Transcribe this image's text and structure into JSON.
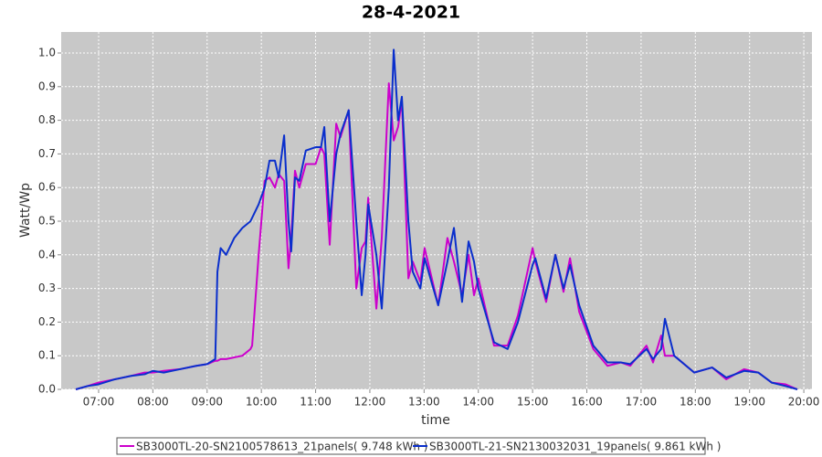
{
  "chart_data": {
    "type": "line",
    "title": "28-4-2021",
    "x_label": "time",
    "y_label": "Watt/Wp",
    "x": [
      6.58,
      6.8,
      7.0,
      7.3,
      7.6,
      7.85,
      8.0,
      8.2,
      8.5,
      8.8,
      9.0,
      9.15,
      9.19,
      9.25,
      9.35,
      9.5,
      9.65,
      9.8,
      9.83,
      9.95,
      10.06,
      10.15,
      10.25,
      10.32,
      10.42,
      10.5,
      10.55,
      10.62,
      10.7,
      10.82,
      11.0,
      11.1,
      11.16,
      11.26,
      11.38,
      11.46,
      11.61,
      11.75,
      11.85,
      11.92,
      11.97,
      12.12,
      12.22,
      12.35,
      12.44,
      12.52,
      12.59,
      12.71,
      12.79,
      12.93,
      13.01,
      13.26,
      13.43,
      13.55,
      13.7,
      13.82,
      13.92,
      14.0,
      14.29,
      14.54,
      14.73,
      15.0,
      15.05,
      15.25,
      15.42,
      15.57,
      15.69,
      15.86,
      16.12,
      16.38,
      16.63,
      16.8,
      17.1,
      17.22,
      17.37,
      17.44,
      17.61,
      17.98,
      18.31,
      18.57,
      18.9,
      19.16,
      19.41,
      19.66,
      19.88
    ],
    "series": [
      {
        "name": "SB3000TL-20-SN2100578613_21panels( 9.748 kWh )",
        "color": "#cc00cc",
        "values": [
          0,
          0.01,
          0.02,
          0.03,
          0.04,
          0.05,
          0.05,
          0.055,
          0.06,
          0.07,
          0.075,
          0.085,
          0.085,
          0.09,
          0.09,
          0.095,
          0.1,
          0.12,
          0.13,
          0.4,
          0.62,
          0.63,
          0.6,
          0.64,
          0.62,
          0.36,
          0.45,
          0.65,
          0.6,
          0.67,
          0.67,
          0.72,
          0.7,
          0.43,
          0.79,
          0.75,
          0.83,
          0.3,
          0.42,
          0.44,
          0.57,
          0.24,
          0.45,
          0.91,
          0.74,
          0.78,
          0.86,
          0.33,
          0.38,
          0.32,
          0.42,
          0.25,
          0.45,
          0.38,
          0.28,
          0.4,
          0.28,
          0.33,
          0.13,
          0.13,
          0.22,
          0.42,
          0.38,
          0.26,
          0.4,
          0.29,
          0.39,
          0.23,
          0.12,
          0.07,
          0.08,
          0.07,
          0.13,
          0.08,
          0.16,
          0.1,
          0.1,
          0.05,
          0.065,
          0.03,
          0.06,
          0.05,
          0.02,
          0.015,
          0
        ]
      },
      {
        "name": "SB3000TL-21-SN2130032031_19panels( 9.861 kWh )",
        "color": "#0a2fcc",
        "values": [
          0,
          0.01,
          0.015,
          0.03,
          0.04,
          0.045,
          0.055,
          0.05,
          0.06,
          0.07,
          0.075,
          0.09,
          0.35,
          0.42,
          0.4,
          0.45,
          0.48,
          0.5,
          0.51,
          0.55,
          0.6,
          0.68,
          0.68,
          0.63,
          0.755,
          0.5,
          0.41,
          0.63,
          0.62,
          0.71,
          0.72,
          0.72,
          0.78,
          0.5,
          0.7,
          0.76,
          0.83,
          0.5,
          0.28,
          0.4,
          0.55,
          0.4,
          0.24,
          0.6,
          1.01,
          0.8,
          0.87,
          0.5,
          0.35,
          0.3,
          0.39,
          0.25,
          0.38,
          0.48,
          0.26,
          0.44,
          0.38,
          0.3,
          0.14,
          0.12,
          0.2,
          0.37,
          0.39,
          0.27,
          0.4,
          0.3,
          0.37,
          0.25,
          0.13,
          0.08,
          0.08,
          0.075,
          0.12,
          0.09,
          0.12,
          0.21,
          0.1,
          0.05,
          0.065,
          0.035,
          0.055,
          0.05,
          0.02,
          0.01,
          0
        ]
      }
    ],
    "xlim": [
      6.31,
      20.15
    ],
    "xticks": [
      {
        "value": 7,
        "label": "07:00"
      },
      {
        "value": 8,
        "label": "08:00"
      },
      {
        "value": 9,
        "label": "09:00"
      },
      {
        "value": 10,
        "label": "10:00"
      },
      {
        "value": 11,
        "label": "11:00"
      },
      {
        "value": 12,
        "label": "12:00"
      },
      {
        "value": 13,
        "label": "13:00"
      },
      {
        "value": 14,
        "label": "14:00"
      },
      {
        "value": 15,
        "label": "15:00"
      },
      {
        "value": 16,
        "label": "16:00"
      },
      {
        "value": 17,
        "label": "17:00"
      },
      {
        "value": 18,
        "label": "18:00"
      },
      {
        "value": 19,
        "label": "19:00"
      },
      {
        "value": 20,
        "label": "20:00"
      }
    ],
    "ylim": [
      0,
      1.0625
    ],
    "yticks": [
      {
        "value": 0,
        "label": "0.0"
      },
      0.1,
      0.2,
      0.3,
      0.4,
      0.5,
      0.6,
      0.7,
      0.8,
      0.9,
      {
        "value": 1,
        "label": "1.0"
      }
    ],
    "grid": true
  }
}
